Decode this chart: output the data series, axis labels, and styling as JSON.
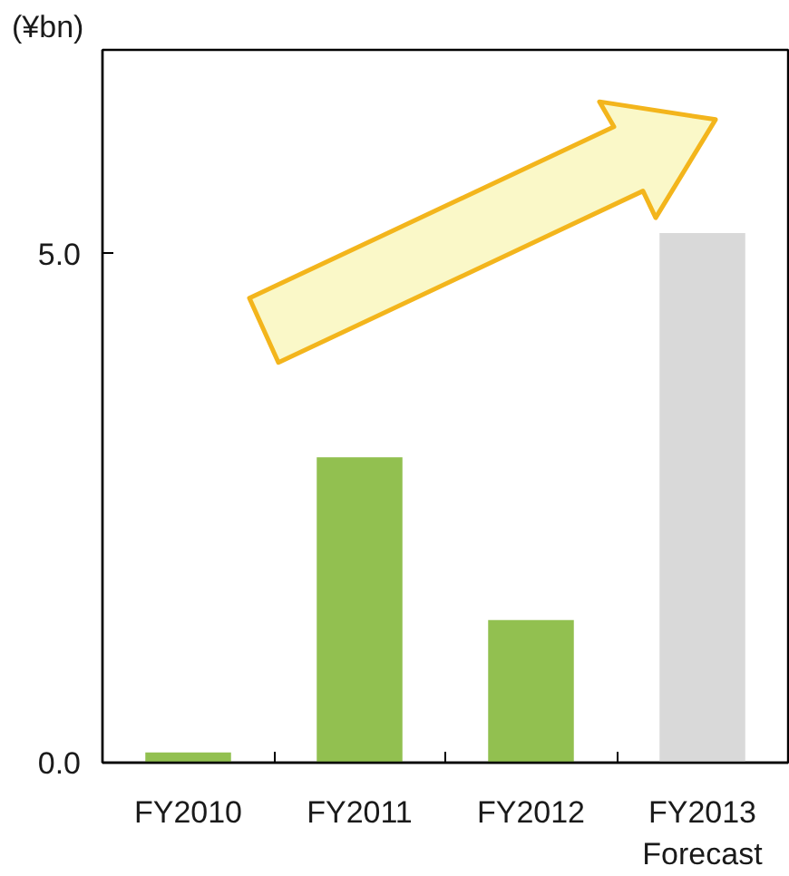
{
  "chart_data": {
    "type": "bar",
    "ylabel": "(¥bn)",
    "categories": [
      "FY2010",
      "FY2011",
      "FY2012",
      "FY2013\nForecast"
    ],
    "values": [
      0.1,
      3.0,
      1.4,
      5.2
    ],
    "colors": [
      "#92c050",
      "#92c050",
      "#92c050",
      "#d9d9d9"
    ],
    "ylim": [
      0,
      7
    ],
    "yticks": [
      {
        "value": 0,
        "label": "0.0"
      },
      {
        "value": 5,
        "label": "5.0"
      }
    ],
    "grid": false
  }
}
